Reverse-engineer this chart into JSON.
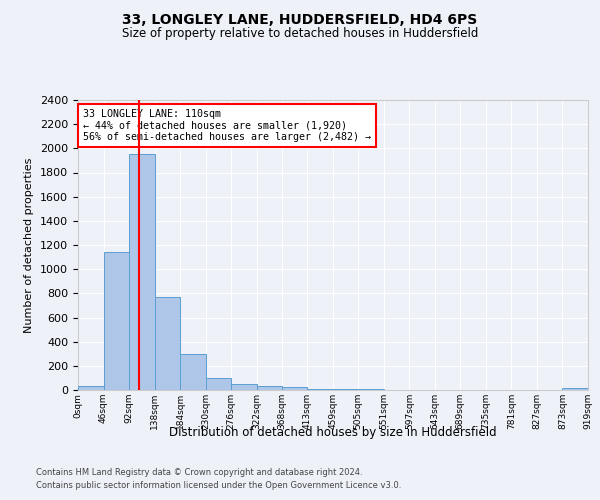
{
  "title1": "33, LONGLEY LANE, HUDDERSFIELD, HD4 6PS",
  "title2": "Size of property relative to detached houses in Huddersfield",
  "xlabel": "Distribution of detached houses by size in Huddersfield",
  "ylabel": "Number of detached properties",
  "bin_edges": [
    0,
    46,
    92,
    138,
    184,
    230,
    276,
    322,
    368,
    413,
    459,
    505,
    551,
    597,
    643,
    689,
    735,
    781,
    827,
    873,
    919
  ],
  "bin_counts": [
    35,
    1140,
    1950,
    770,
    295,
    100,
    50,
    35,
    25,
    10,
    8,
    5,
    4,
    3,
    2,
    2,
    1,
    1,
    0,
    20
  ],
  "bar_color": "#aec6e8",
  "bar_edgecolor": "#5a9fd4",
  "property_size": 110,
  "annotation_line1": "33 LONGLEY LANE: 110sqm",
  "annotation_line2": "← 44% of detached houses are smaller (1,920)",
  "annotation_line3": "56% of semi-detached houses are larger (2,482) →",
  "annotation_box_color": "white",
  "annotation_box_edgecolor": "red",
  "vline_color": "red",
  "ylim": [
    0,
    2400
  ],
  "yticks": [
    0,
    200,
    400,
    600,
    800,
    1000,
    1200,
    1400,
    1600,
    1800,
    2000,
    2200,
    2400
  ],
  "footer1": "Contains HM Land Registry data © Crown copyright and database right 2024.",
  "footer2": "Contains public sector information licensed under the Open Government Licence v3.0.",
  "background_color": "#eef2f8",
  "plot_bg_color": "#eef2f8"
}
